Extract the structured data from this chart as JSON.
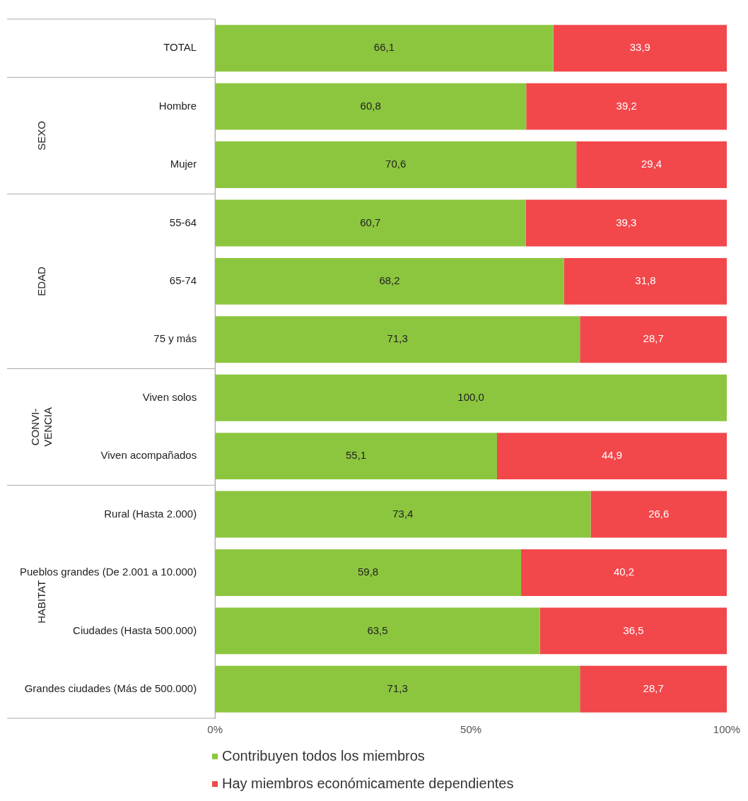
{
  "chart_data": {
    "type": "bar",
    "orientation": "horizontal",
    "stacked": true,
    "categories": [
      "TOTAL",
      "Hombre",
      "Mujer",
      "55-64",
      "65-74",
      "75 y más",
      "Viven solos",
      "Viven acompañados",
      "Rural (Hasta 2.000)",
      "Pueblos grandes (De 2.001 a 10.000)",
      "Ciudades (Hasta 500.000)",
      "Grandes ciudades (Más de 500.000)"
    ],
    "series": [
      {
        "name": "Contribuyen todos los miembros",
        "color": "#8cc63f",
        "values": [
          66.1,
          60.8,
          70.6,
          60.7,
          68.2,
          71.3,
          100.0,
          55.1,
          73.4,
          59.8,
          63.5,
          71.3
        ],
        "value_labels": [
          "66,1",
          "60,8",
          "70,6",
          "60,7",
          "68,2",
          "71,3",
          "100,0",
          "55,1",
          "73,4",
          "59,8",
          "63,5",
          "71,3"
        ]
      },
      {
        "name": "Hay miembros económicamente dependientes",
        "color": "#f2474b",
        "values": [
          33.9,
          39.2,
          29.4,
          39.3,
          31.8,
          28.7,
          null,
          44.9,
          26.6,
          40.2,
          36.5,
          28.7
        ],
        "value_labels": [
          "33,9",
          "39,2",
          "29,4",
          "39,3",
          "31,8",
          "28,7",
          null,
          "44,9",
          "26,6",
          "40,2",
          "36,5",
          "28,7"
        ]
      }
    ],
    "xlim": [
      0,
      100
    ],
    "xticks": [
      {
        "value": 0,
        "label": "0%"
      },
      {
        "value": 50,
        "label": "50%"
      },
      {
        "value": 100,
        "label": "100%"
      }
    ],
    "grid": false,
    "legend": "bottom",
    "annotations": [
      "SEXO",
      "EDAD",
      "CONVI-\nVENCIA",
      "HABITAT"
    ]
  }
}
